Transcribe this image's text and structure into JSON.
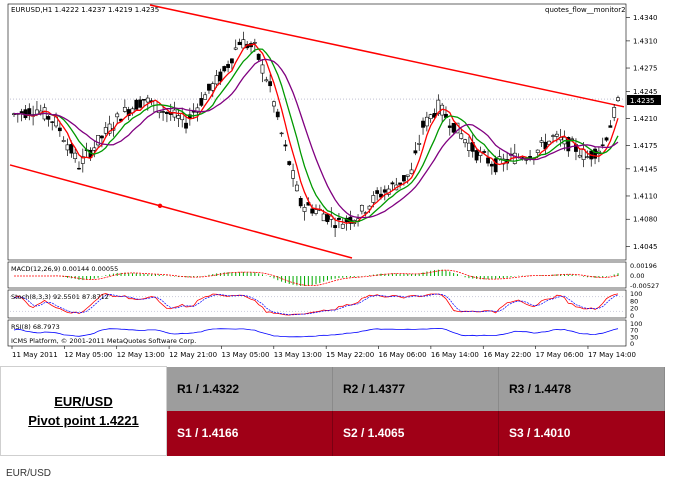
{
  "chart_data": {
    "type": "candlestick",
    "symbol_header": "EURUSD,H1  1.4222 1.4237 1.4219 1.4235",
    "indicator_label": "quotes_flow__monitor2",
    "current_price": "1.4235",
    "price_ticks": [
      "1.4340",
      "1.4310",
      "1.4275",
      "1.4245",
      "1.4210",
      "1.4175",
      "1.4145",
      "1.4110",
      "1.4080",
      "1.4045"
    ],
    "time_ticks": [
      "11 May 2011",
      "12 May 05:00",
      "12 May 13:00",
      "12 May 21:00",
      "13 May 05:00",
      "13 May 13:00",
      "15 May 22:00",
      "16 May 06:00",
      "16 May 14:00",
      "16 May 22:00",
      "17 May 06:00",
      "17 May 14:00"
    ],
    "macd": {
      "label": "MACD(12,26,9) 0.00144 0.00055",
      "ticks": [
        "0.00196",
        "0.00",
        "-0.00527"
      ]
    },
    "stoch": {
      "label": "Stoch(8,3,3) 92.5501 87.8712",
      "ticks": [
        "100",
        "80",
        "20",
        "0"
      ]
    },
    "rsi": {
      "label": "RSI(8) 68.7973",
      "ticks": [
        "100",
        "70",
        "30",
        "0"
      ]
    },
    "copyright": "ICMS Platform, © 2001-2011 MetaQuotes Software Corp.",
    "colors": {
      "up": "#000000",
      "down": "#000000",
      "ma_fast": "#ff0000",
      "ma_mid": "#009900",
      "ma_slow": "#800080",
      "channel": "#ff0000",
      "macd_hist": "#00aa00",
      "signal": "#ff0000",
      "rsi": "#0000ff"
    }
  },
  "levels": {
    "pair": "EUR/USD",
    "pivot": "Pivot point 1.4221",
    "resistance": [
      "R1 / 1.4322",
      "R2 / 1.4377",
      "R3 / 1.4478"
    ],
    "support": [
      "S1 / 1.4166",
      "S2 / 1.4065",
      "S3 / 1.4010"
    ]
  },
  "footer": "EUR/USD"
}
